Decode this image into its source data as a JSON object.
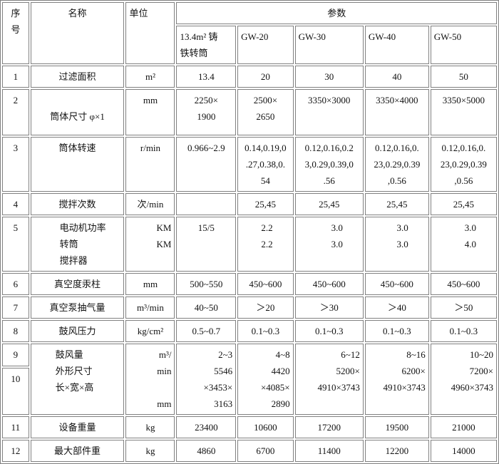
{
  "header": {
    "seq": "序\n号",
    "name": "名称",
    "unit": "单位",
    "params": "参数",
    "models": [
      "13.4m² 铸\n铁转筒",
      "GW-20",
      "GW-30",
      "GW-40",
      "GW-50"
    ]
  },
  "rows": [
    {
      "seq": "1",
      "name": "过滤面积",
      "unit": "m²",
      "values": [
        "13.4",
        "20",
        "30",
        "40",
        "50"
      ]
    },
    {
      "seq": "2",
      "name": "\n筒体尺寸 φ×1",
      "unit": "mm",
      "values": [
        "2250×\n1900",
        "2500×\n2650",
        "3350×3000",
        "3350×4000",
        "3350×5000"
      ]
    },
    {
      "seq": "3",
      "name": "筒体转速",
      "unit": "r/min",
      "values": [
        "0.966~2.9",
        "0.14,0.19,0\n.27,0.38,0.\n54",
        "0.12,0.16,0.2\n3,0.29,0.39,0\n.56",
        "0.12,0.16,0.\n23,0.29,0.39\n,0.56",
        "0.12,0.16,0.\n23,0.29,0.39\n,0.56"
      ]
    },
    {
      "seq": "4",
      "name": "搅拌次数",
      "unit": "次/min",
      "values": [
        "",
        "25,45",
        "25,45",
        "25,45",
        "25,45"
      ]
    },
    {
      "seq": "5",
      "name": "电动机功率\n转筒\n  搅拌器",
      "unit": "KM\nKM",
      "values": [
        "15/5",
        "2.2\n2.2",
        "3.0\n3.0",
        "3.0\n3.0",
        "3.0\n4.0"
      ]
    },
    {
      "seq": "6",
      "name": "真空度汞柱",
      "unit": "mm",
      "values": [
        "500~550",
        "450~600",
        "450~600",
        "450~600",
        "450~600"
      ]
    },
    {
      "seq": "7",
      "name": "真空泵抽气量",
      "unit": "m³/min",
      "values": [
        "40~50",
        "＞20",
        "＞30",
        "＞40",
        "＞50"
      ]
    },
    {
      "seq": "8",
      "name": "鼓风压力",
      "unit": "kg/cm²",
      "values": [
        "0.5~0.7",
        "0.1~0.3",
        "0.1~0.3",
        "0.1~0.3",
        "0.1~0.3"
      ]
    },
    {
      "seq": "9",
      "seq2": "10",
      "name": "鼓风量\n外形尺寸\n长×宽×高",
      "unit": "m³/\nmin\n\nmm",
      "values": [
        "2~3\n5546\n×3453×\n3163",
        "4~8\n4420\n×4085×\n2890",
        "6~12\n5200×\n4910×3743",
        "8~16\n6200×\n4910×3743",
        "10~20\n7200×\n4960×3743"
      ]
    },
    {
      "seq": "11",
      "name": "设备重量",
      "unit": "kg",
      "values": [
        "23400",
        "10600",
        "17200",
        "19500",
        "21000"
      ]
    },
    {
      "seq": "12",
      "name": "最大部件重",
      "unit": "kg",
      "values": [
        "4860",
        "6700",
        "11400",
        "12200",
        "14000"
      ]
    }
  ]
}
